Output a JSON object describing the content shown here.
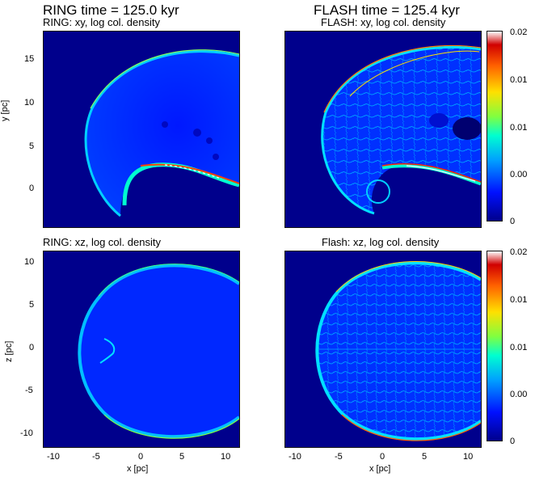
{
  "titles": {
    "ring_top": "RING time = 125.0 kyr",
    "flash_top": "FLASH time = 125.4 kyr"
  },
  "colors": {
    "background": "#00008c",
    "colormap": [
      "#00008c",
      "#0010ff",
      "#00a0ff",
      "#00ffd0",
      "#80ff40",
      "#ffe000",
      "#ff6000",
      "#d00000",
      "#ffffff"
    ]
  },
  "chart_data": [
    {
      "type": "heatmap",
      "title": "RING: xy, log col. density",
      "xlabel": "",
      "ylabel": "y [pc]",
      "xlim": [
        -12,
        11.5
      ],
      "ylim": [
        -4.5,
        19
      ],
      "yticks": [
        "15",
        "10",
        "5",
        "0"
      ],
      "xticks": []
    },
    {
      "type": "heatmap",
      "title": "FLASH: xy, log col. density",
      "xlabel": "",
      "ylabel": "",
      "xlim": [
        -12,
        11.5
      ],
      "ylim": [
        -4.5,
        19
      ],
      "colorbar": {
        "ticks": [
          "0.02",
          "0.01",
          "0.01",
          "0.00",
          "0"
        ]
      }
    },
    {
      "type": "heatmap",
      "title": "RING: xz, log col. density",
      "xlabel": "x [pc]",
      "ylabel": "z [pc]",
      "xlim": [
        -12,
        11.5
      ],
      "ylim": [
        -11.5,
        11.5
      ],
      "yticks": [
        "10",
        "5",
        "0",
        "-5",
        "-10"
      ],
      "xticks": [
        "-10",
        "-5",
        "0",
        "5",
        "10"
      ]
    },
    {
      "type": "heatmap",
      "title": "Flash: xz, log col. density",
      "xlabel": "x [pc]",
      "ylabel": "",
      "xlim": [
        -12,
        11.5
      ],
      "ylim": [
        -11.5,
        11.5
      ],
      "xticks": [
        "-10",
        "-5",
        "0",
        "5",
        "10"
      ],
      "colorbar": {
        "ticks": [
          "0.02",
          "0.01",
          "0.01",
          "0.00",
          "0"
        ]
      }
    }
  ]
}
